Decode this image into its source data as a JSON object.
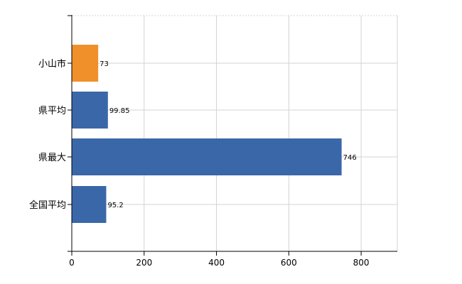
{
  "chart_data": {
    "type": "bar",
    "orientation": "horizontal",
    "categories": [
      "小山市",
      "県平均",
      "県最大",
      "全国平均"
    ],
    "values": [
      73,
      99.85,
      746,
      95.2
    ],
    "value_labels": [
      "73",
      "99.85",
      "746",
      "95.2"
    ],
    "bar_colors": [
      "#f0902a",
      "#3a67a8",
      "#3a67a8",
      "#3a67a8"
    ],
    "xlim": [
      0,
      900
    ],
    "xticks": [
      0,
      200,
      400,
      600,
      800
    ],
    "xtick_labels": [
      "0",
      "200",
      "400",
      "600",
      "800"
    ],
    "grid": true,
    "grid_color": "#d3d3d3",
    "title": "",
    "xlabel": "",
    "ylabel": ""
  }
}
